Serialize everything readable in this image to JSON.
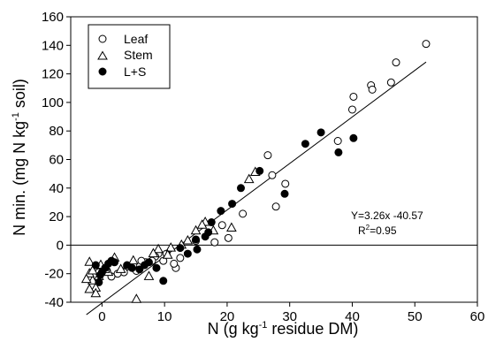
{
  "chart_data": {
    "type": "scatter",
    "title": "",
    "xlabel": {
      "pre": "N (g kg",
      "sup": "-1",
      "post": " residue DM)"
    },
    "ylabel": {
      "pre": "N min. (mg N kg",
      "sup": "-1",
      "post": " soil)"
    },
    "xlim": [
      -5,
      60
    ],
    "ylim": [
      -40,
      160
    ],
    "xticks": [
      0,
      10,
      20,
      30,
      40,
      50,
      60
    ],
    "yticks": [
      -40,
      -20,
      0,
      20,
      40,
      60,
      80,
      100,
      120,
      140,
      160
    ],
    "xtick_labels": [
      "0",
      "10",
      "20",
      "30",
      "40",
      "50",
      "60"
    ],
    "ytick_labels": [
      "-40",
      "-20",
      "0",
      "20",
      "40",
      "60",
      "80",
      "100",
      "120",
      "140",
      "160"
    ],
    "grid": false,
    "legend_position": "top-left",
    "series": [
      {
        "name": "Leaf",
        "marker": "open-circle",
        "points": [
          [
            51.8,
            141
          ],
          [
            47.0,
            128
          ],
          [
            46.2,
            114
          ],
          [
            43.0,
            112
          ],
          [
            43.2,
            109
          ],
          [
            40.2,
            104
          ],
          [
            40.0,
            95
          ],
          [
            37.7,
            73
          ],
          [
            26.5,
            63
          ],
          [
            27.2,
            49
          ],
          [
            29.3,
            43
          ],
          [
            27.8,
            27
          ],
          [
            22.5,
            22
          ],
          [
            20.2,
            5
          ],
          [
            19.2,
            14
          ],
          [
            18.0,
            2
          ],
          [
            15.0,
            3
          ],
          [
            12.5,
            -9
          ],
          [
            11.8,
            -16
          ],
          [
            11.5,
            -13
          ],
          [
            10.3,
            -6
          ],
          [
            9.8,
            -11
          ],
          [
            9.0,
            -6
          ],
          [
            8.5,
            -8
          ],
          [
            8.0,
            -11
          ],
          [
            7.0,
            -12
          ],
          [
            6.3,
            -11
          ],
          [
            5.5,
            -18
          ],
          [
            5.0,
            -14
          ],
          [
            4.0,
            -15
          ],
          [
            3.5,
            -19
          ],
          [
            2.5,
            -20
          ],
          [
            1.5,
            -22
          ],
          [
            0.8,
            -18
          ],
          [
            0.0,
            -17
          ],
          [
            -0.5,
            -19
          ]
        ]
      },
      {
        "name": "Stem",
        "marker": "open-triangle",
        "points": [
          [
            24.5,
            51
          ],
          [
            23.5,
            46
          ],
          [
            20.7,
            12
          ],
          [
            17.8,
            10
          ],
          [
            16.5,
            16
          ],
          [
            16.0,
            14
          ],
          [
            15.0,
            10
          ],
          [
            13.7,
            3
          ],
          [
            12.7,
            0
          ],
          [
            11.0,
            -2
          ],
          [
            10.5,
            -7
          ],
          [
            9.0,
            -3
          ],
          [
            8.2,
            -6
          ],
          [
            7.5,
            -22
          ],
          [
            5.5,
            -38
          ],
          [
            5.0,
            -11
          ],
          [
            3.0,
            -17
          ],
          [
            2.0,
            -9
          ],
          [
            1.0,
            -19
          ],
          [
            0.5,
            -17
          ],
          [
            -0.2,
            -14
          ],
          [
            -0.5,
            -22
          ],
          [
            -1.0,
            -30
          ],
          [
            -1.5,
            -25
          ],
          [
            -2.0,
            -31
          ],
          [
            -2.0,
            -20
          ],
          [
            -2.5,
            -24
          ],
          [
            -2.0,
            -12
          ],
          [
            -1.5,
            -18
          ],
          [
            -1.0,
            -34
          ]
        ]
      },
      {
        "name": "L+S",
        "marker": "filled-circle",
        "points": [
          [
            40.2,
            75
          ],
          [
            37.8,
            65
          ],
          [
            35.0,
            79
          ],
          [
            32.5,
            71
          ],
          [
            29.2,
            36
          ],
          [
            25.2,
            52
          ],
          [
            22.2,
            40
          ],
          [
            20.8,
            29
          ],
          [
            19.0,
            24
          ],
          [
            17.5,
            16
          ],
          [
            17.0,
            9
          ],
          [
            16.5,
            6
          ],
          [
            15.0,
            4
          ],
          [
            15.2,
            -3
          ],
          [
            13.7,
            -6
          ],
          [
            12.5,
            -2
          ],
          [
            9.8,
            -25
          ],
          [
            8.7,
            -16
          ],
          [
            7.5,
            -12
          ],
          [
            6.8,
            -14
          ],
          [
            6.0,
            -17
          ],
          [
            4.8,
            -16
          ],
          [
            4.0,
            -14
          ],
          [
            2.0,
            -12
          ],
          [
            1.5,
            -11
          ],
          [
            1.0,
            -13
          ],
          [
            0.5,
            -16
          ],
          [
            0.0,
            -19
          ],
          [
            -0.3,
            -21
          ],
          [
            -0.5,
            -26
          ],
          [
            -1.0,
            -14
          ]
        ]
      }
    ],
    "fit_line": {
      "slope": 3.26,
      "intercept": -40.57,
      "x_range": [
        -2.5,
        51.8
      ]
    },
    "annotations": {
      "equation": "Y=3.26x -40.57",
      "r2_pre": "R",
      "r2_sup": "2",
      "r2_post": "=0.95"
    }
  }
}
